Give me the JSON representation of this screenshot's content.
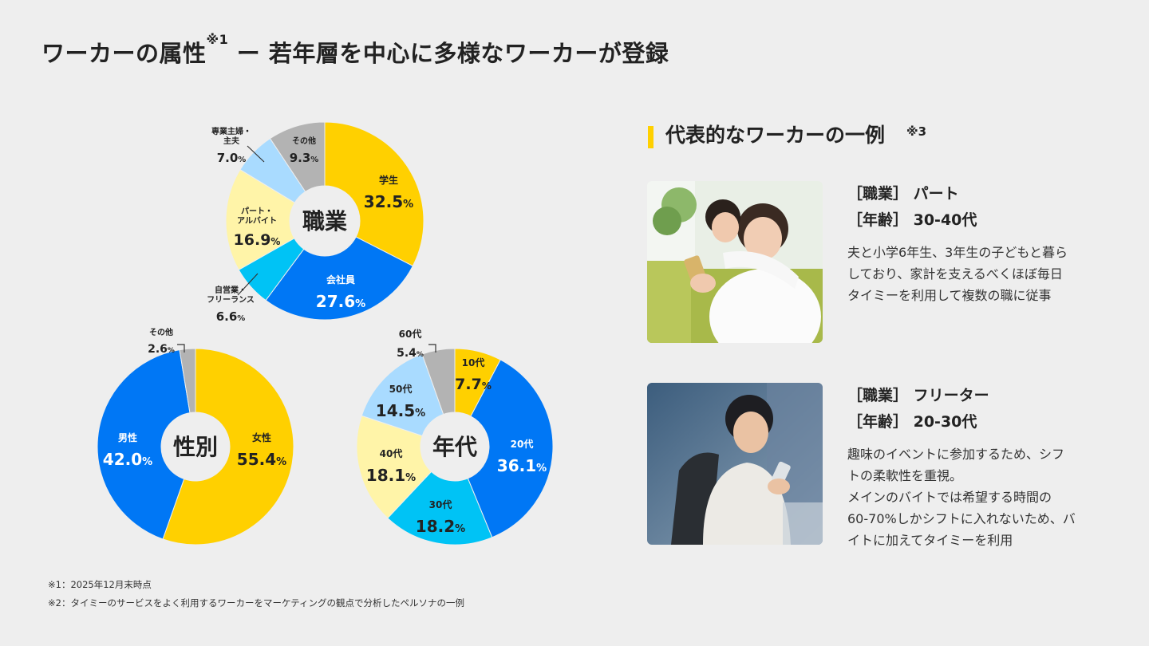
{
  "page": {
    "title": "ワーカーの属性",
    "title_sup": "※1",
    "title_rest": " ー 若年層を中心に多様なワーカーが登録"
  },
  "chart_data": [
    {
      "type": "pie",
      "title": "職業",
      "slices": [
        {
          "label": "学生",
          "value": 32.5,
          "color": "#ffd000"
        },
        {
          "label": "会社員",
          "value": 27.6,
          "color": "#0077f5"
        },
        {
          "label": "自営業・フリーランス",
          "value": 6.6,
          "color": "#00c3f5"
        },
        {
          "label": "パート・アルバイト",
          "value": 16.9,
          "color": "#fff4a8"
        },
        {
          "label": "専業主婦・主夫",
          "value": 7.0,
          "color": "#a9dbff"
        },
        {
          "label": "その他",
          "value": 9.3,
          "color": "#b3b3b3"
        }
      ]
    },
    {
      "type": "pie",
      "title": "性別",
      "slices": [
        {
          "label": "女性",
          "value": 55.4,
          "color": "#ffd000"
        },
        {
          "label": "男性",
          "value": 42.0,
          "color": "#0077f5"
        },
        {
          "label": "その他",
          "value": 2.6,
          "color": "#b3b3b3"
        }
      ]
    },
    {
      "type": "pie",
      "title": "年代",
      "slices": [
        {
          "label": "10代",
          "value": 7.7,
          "color": "#ffd000"
        },
        {
          "label": "20代",
          "value": 36.1,
          "color": "#0077f5"
        },
        {
          "label": "30代",
          "value": 18.2,
          "color": "#00c3f5"
        },
        {
          "label": "40代",
          "value": 18.1,
          "color": "#fff4a8"
        },
        {
          "label": "50代",
          "value": 14.5,
          "color": "#a9dbff"
        },
        {
          "label": "60代",
          "value": 5.4,
          "color": "#b3b3b3"
        }
      ]
    }
  ],
  "representative": {
    "title": "代表的なワーカーの一例",
    "note": "※3",
    "personas": [
      {
        "job": "［職業］ パート",
        "age": "［年齢］ 30-40代",
        "desc": "夫と小学6年生、3年生の子どもと暮ら\nしており、家計を支えるべくほぼ毎日\nタイミーを利用して複数の職に従事"
      },
      {
        "job": "［職業］ フリーター",
        "age": "［年齢］ 20-30代",
        "desc": "趣味のイベントに参加するため、シフ\nトの柔軟性を重視。\nメインのバイトでは希望する時間の\n60-70%しかシフトに入れないため、バ\nイトに加えてタイミーを利用"
      }
    ]
  },
  "footnotes": [
    "※1：2025年12月末時点",
    "※2：タイミーのサービスをよく利用するワーカーをマーケティングの観点で分析したペルソナの一例"
  ]
}
